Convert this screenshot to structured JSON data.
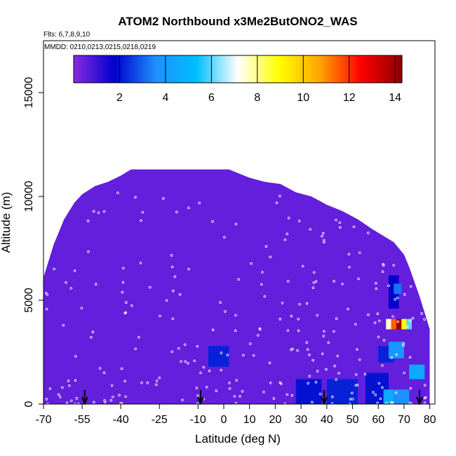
{
  "chart_data": {
    "type": "heatmap",
    "title": "ATOM2 Northbound x3Me2ButONO2_WAS",
    "flights_label": "Flts: 6,7,8,9,10",
    "dates_label": "MMDD: 0210,0213,0215,0218,0219",
    "xlabel": "Latitude (deg N)",
    "ylabel": "Altitude (m)",
    "xlim": [
      -70,
      82
    ],
    "ylim": [
      0,
      17500
    ],
    "x_ticks": [
      -70,
      -55,
      -40,
      -25,
      -10,
      0,
      10,
      20,
      30,
      40,
      50,
      60,
      70,
      80
    ],
    "x_tick_labels": [
      "-70",
      "-55",
      "-40",
      "-25",
      "-10",
      "0",
      "10",
      "20",
      "30",
      "40",
      "50",
      "60",
      "70",
      "80"
    ],
    "y_ticks": [
      0,
      5000,
      10000,
      15000
    ],
    "y_tick_labels": [
      "0",
      "5000",
      "10000",
      "15000"
    ],
    "colorbar": {
      "min": 0,
      "max": 14.3,
      "ticks": [
        2,
        4,
        6,
        8,
        10,
        12,
        14
      ],
      "tick_labels": [
        "2",
        "4",
        "6",
        "8",
        "10",
        "12",
        "14"
      ],
      "colors": [
        "#8a2be2",
        "#0000cd",
        "#1e90ff",
        "#00bfff",
        "#ffffff",
        "#ffff00",
        "#ffa500",
        "#ff0000",
        "#8b0000"
      ]
    },
    "background_value": 0.5,
    "hotspots": [
      {
        "x": [
          -6,
          2
        ],
        "y": [
          1800,
          2800
        ],
        "value": 2.2
      },
      {
        "x": [
          28,
          38
        ],
        "y": [
          0,
          1200
        ],
        "value": 2.0
      },
      {
        "x": [
          40,
          52
        ],
        "y": [
          0,
          1200
        ],
        "value": 2.2
      },
      {
        "x": [
          55,
          64
        ],
        "y": [
          0,
          1500
        ],
        "value": 2.0
      },
      {
        "x": [
          62,
          66
        ],
        "y": [
          0,
          700
        ],
        "value": 4.5
      },
      {
        "x": [
          66,
          72
        ],
        "y": [
          0,
          700
        ],
        "value": 3.6
      },
      {
        "x": [
          72,
          78
        ],
        "y": [
          1200,
          1900
        ],
        "value": 4.5
      },
      {
        "x": [
          60,
          66
        ],
        "y": [
          2000,
          2800
        ],
        "value": 2.2
      },
      {
        "x": [
          64,
          70
        ],
        "y": [
          2200,
          3000
        ],
        "value": 3.8
      },
      {
        "x": [
          63,
          65
        ],
        "y": [
          3600,
          4100
        ],
        "value": 7.5
      },
      {
        "x": [
          65,
          67
        ],
        "y": [
          3600,
          4100
        ],
        "value": 11.5
      },
      {
        "x": [
          67,
          69
        ],
        "y": [
          3600,
          4100
        ],
        "value": 14.0
      },
      {
        "x": [
          69,
          71
        ],
        "y": [
          3600,
          4100
        ],
        "value": 9.0
      },
      {
        "x": [
          71,
          73
        ],
        "y": [
          3600,
          4100
        ],
        "value": 6.0
      },
      {
        "x": [
          64,
          68
        ],
        "y": [
          4600,
          6200
        ],
        "value": 1.8
      },
      {
        "x": [
          66,
          69
        ],
        "y": [
          5300,
          5800
        ],
        "value": 3.2
      }
    ],
    "arrows_x": [
      -54,
      -9,
      39,
      76
    ]
  }
}
